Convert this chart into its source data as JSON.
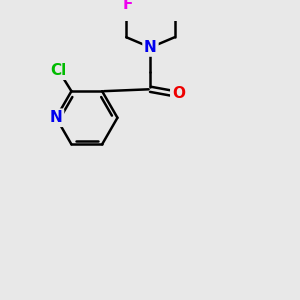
{
  "bg_color": "#e8e8e8",
  "bond_color": "#000000",
  "bond_width": 1.8,
  "atom_colors": {
    "N": "#0000ee",
    "O": "#ee0000",
    "Cl": "#00bb00",
    "F": "#ee00ee"
  },
  "font_size": 11,
  "fig_size": [
    3.0,
    3.0
  ],
  "dpi": 100
}
